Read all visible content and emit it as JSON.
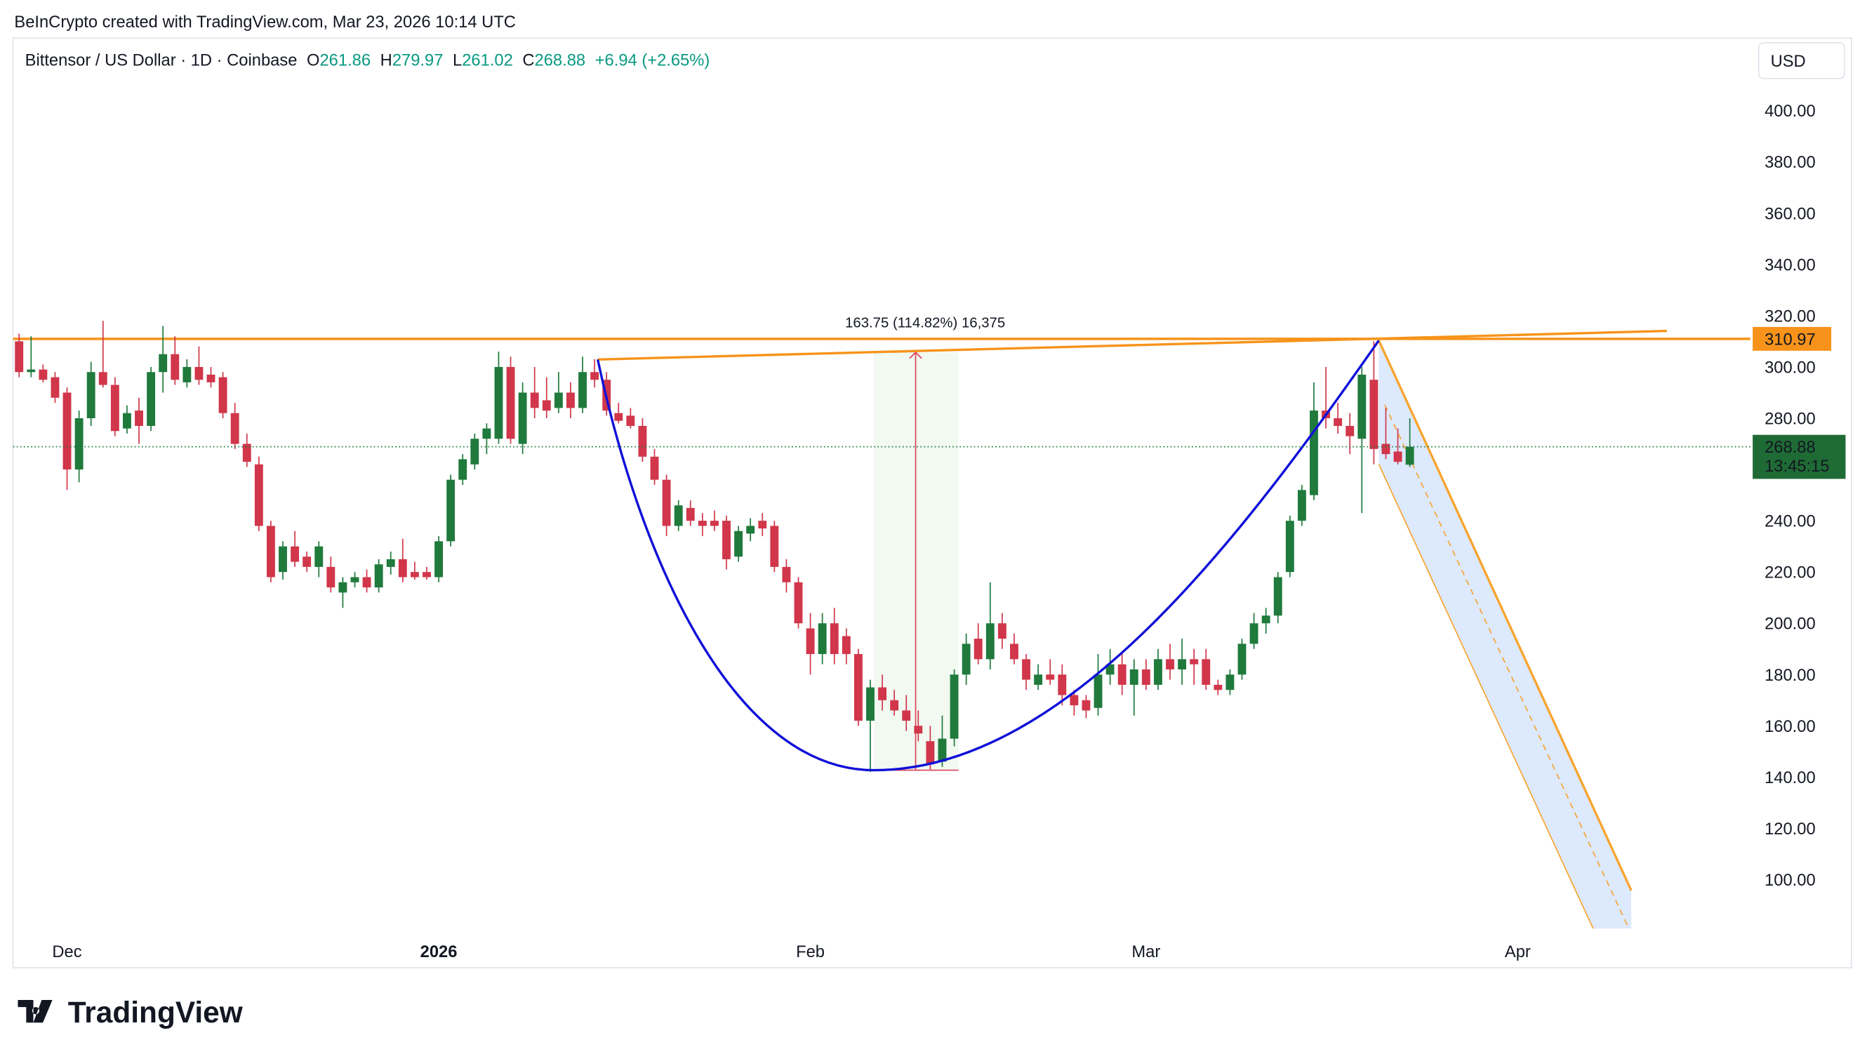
{
  "header": "BeInCrypto created with TradingView.com, Mar 23, 2026 10:14 UTC",
  "currency": "USD",
  "logo": "TradingView",
  "chart_data": {
    "type": "candlestick",
    "symbol": "Bittensor / US Dollar · 1D · Coinbase",
    "ohlc_labels": [
      "O",
      "H",
      "L",
      "C"
    ],
    "change": "+6.94 (+2.65%)",
    "up_color": "#1f7a3c",
    "down_color": "#d1364a",
    "xlim": [
      -0.5,
      144.4
    ],
    "xticks": [
      {
        "value": 4,
        "label": "Dec"
      },
      {
        "value": 35,
        "label": "2026"
      },
      {
        "value": 66,
        "label": "Feb"
      },
      {
        "value": 94,
        "label": "Mar"
      },
      {
        "value": 125,
        "label": "Apr"
      }
    ],
    "ylim": [
      78.6,
      428.3
    ],
    "yticks": [
      {
        "value": 100,
        "label": "100.00"
      },
      {
        "value": 120,
        "label": "120.00"
      },
      {
        "value": 140,
        "label": "140.00"
      },
      {
        "value": 160,
        "label": "160.00"
      },
      {
        "value": 180,
        "label": "180.00"
      },
      {
        "value": 200,
        "label": "200.00"
      },
      {
        "value": 220,
        "label": "220.00"
      },
      {
        "value": 240,
        "label": "240.00"
      },
      {
        "value": 280,
        "label": "280.00"
      },
      {
        "value": 300,
        "label": "300.00"
      },
      {
        "value": 320,
        "label": "320.00"
      },
      {
        "value": 340,
        "label": "340.00"
      },
      {
        "value": 360,
        "label": "360.00"
      },
      {
        "value": 380,
        "label": "380.00"
      },
      {
        "value": 400,
        "label": "400.00"
      }
    ],
    "resistance": 310.97,
    "measure_label": "163.75 (114.82%) 16,375",
    "countdown": "13:45:15",
    "open": [
      310,
      298,
      299,
      296,
      290,
      260,
      280,
      298,
      293,
      276,
      283,
      277,
      298,
      305,
      294,
      300,
      297,
      296,
      282,
      270,
      262,
      238,
      220,
      230,
      226,
      222,
      222,
      212,
      216,
      218,
      214,
      222,
      225,
      220,
      220,
      218,
      232,
      256,
      262,
      272,
      272,
      300,
      270,
      290,
      287,
      284,
      290,
      284,
      298,
      295,
      282,
      281,
      277,
      265,
      256,
      238,
      245,
      240,
      240,
      240,
      226,
      235,
      240,
      238,
      222,
      216,
      198,
      188,
      200,
      195,
      188,
      162,
      175,
      170,
      166,
      160,
      154,
      146,
      155,
      180,
      194,
      186,
      200,
      192,
      186,
      176,
      180,
      180,
      172,
      170,
      167,
      180,
      184,
      176,
      182,
      176,
      186,
      182,
      186,
      186,
      176,
      174,
      180,
      192,
      200,
      203,
      220,
      240,
      250,
      283,
      280,
      277,
      272,
      295,
      270,
      267,
      261.86
    ],
    "high": [
      313,
      312,
      301,
      298,
      292,
      283,
      302,
      318,
      296,
      285,
      288,
      300,
      316,
      312,
      303,
      308,
      300,
      298,
      286,
      274,
      265,
      240,
      232,
      236,
      228,
      232,
      226,
      218,
      220,
      221,
      225,
      228,
      233,
      224,
      222,
      234,
      258,
      266,
      274,
      278,
      306,
      304,
      294,
      300,
      296,
      298,
      294,
      304,
      303,
      298,
      286,
      284,
      280,
      268,
      258,
      248,
      248,
      243,
      244,
      242,
      238,
      241,
      243,
      240,
      225,
      218,
      204,
      204,
      206,
      198,
      190,
      178,
      180,
      174,
      172,
      166,
      160,
      164,
      182,
      196,
      200,
      216,
      204,
      196,
      188,
      184,
      186,
      184,
      174,
      172,
      188,
      190,
      188,
      186,
      186,
      190,
      192,
      194,
      190,
      190,
      178,
      182,
      194,
      204,
      206,
      220,
      242,
      254,
      294,
      300,
      286,
      282,
      300,
      310,
      284,
      276,
      279.97
    ],
    "low": [
      296,
      296,
      294,
      286,
      252,
      255,
      277,
      292,
      273,
      274,
      270,
      275,
      290,
      293,
      292,
      293,
      292,
      280,
      268,
      261,
      236,
      216,
      217,
      222,
      220,
      218,
      212,
      206,
      214,
      212,
      212,
      219,
      216,
      217,
      217,
      216,
      230,
      254,
      260,
      266,
      270,
      270,
      266,
      280,
      280,
      282,
      280,
      282,
      292,
      281,
      278,
      276,
      263,
      254,
      234,
      236,
      238,
      234,
      236,
      221,
      224,
      232,
      234,
      220,
      212,
      198,
      180,
      184,
      184,
      184,
      160,
      142,
      166,
      164,
      158,
      154,
      143,
      144,
      152,
      176,
      184,
      182,
      190,
      184,
      174,
      174,
      176,
      168,
      164,
      163,
      164,
      176,
      172,
      164,
      174,
      174,
      178,
      176,
      176,
      174,
      172,
      172,
      178,
      190,
      196,
      200,
      218,
      238,
      248,
      276,
      274,
      266,
      243,
      262,
      264,
      262,
      261.02
    ],
    "close": [
      298,
      299,
      295,
      288,
      260,
      280,
      298,
      293,
      275,
      282,
      277,
      298,
      305,
      295,
      300,
      295,
      294,
      282,
      270,
      263,
      238,
      218,
      230,
      224,
      222,
      230,
      214,
      216,
      218,
      214,
      223,
      225,
      218,
      218,
      218,
      232,
      256,
      264,
      272,
      276,
      300,
      272,
      290,
      284,
      283,
      290,
      284,
      298,
      295,
      283,
      279,
      277,
      265,
      256,
      238,
      246,
      240,
      238,
      238,
      225,
      236,
      238,
      237,
      222,
      216,
      200,
      188,
      200,
      188,
      188,
      162,
      175,
      170,
      166,
      162,
      157,
      145,
      155,
      180,
      192,
      186,
      200,
      194,
      186,
      178,
      180,
      178,
      172,
      168,
      166,
      180,
      184,
      176,
      182,
      176,
      186,
      182,
      186,
      184,
      176,
      174,
      180,
      192,
      200,
      203,
      218,
      240,
      252,
      283,
      280,
      277,
      273,
      297,
      268,
      266,
      263,
      268.88
    ]
  }
}
